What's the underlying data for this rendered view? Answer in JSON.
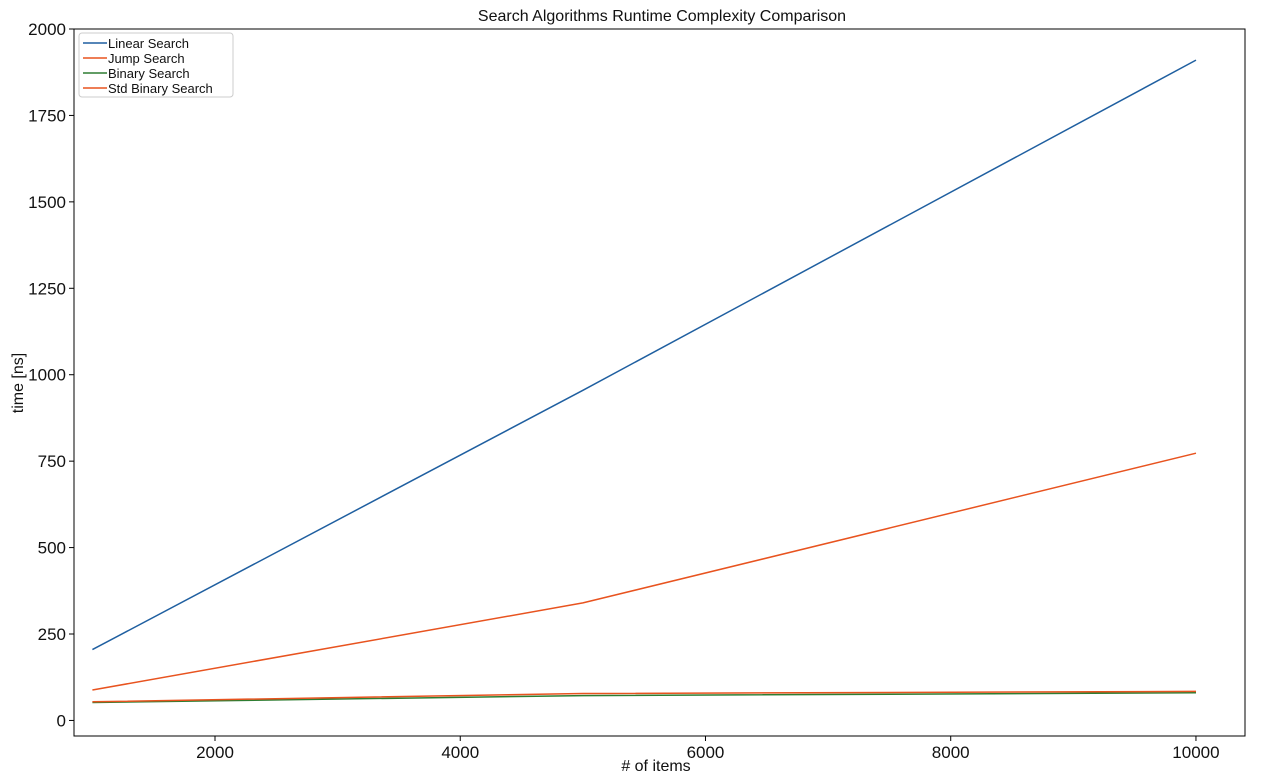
{
  "chart_data": {
    "type": "line",
    "title": "Search Algorithms Runtime Complexity Comparison",
    "xlabel": "# of items",
    "ylabel": "time [ns]",
    "ylabel_color": "#2e5e2e",
    "xlim": [
      850,
      10400
    ],
    "ylim": [
      -45,
      2000
    ],
    "xticks": [
      2000,
      4000,
      6000,
      8000,
      10000
    ],
    "yticks": [
      0,
      250,
      500,
      750,
      1000,
      1250,
      1500,
      1750,
      2000
    ],
    "grid": false,
    "legend_position": "top-left",
    "x": [
      1000,
      5000,
      10000
    ],
    "series": [
      {
        "name": "Linear Search",
        "color": "#1f5fa0",
        "values": [
          205,
          955,
          1910
        ]
      },
      {
        "name": "Jump Search",
        "color": "#e8531f",
        "values": [
          88,
          340,
          773
        ]
      },
      {
        "name": "Binary Search",
        "color": "#2e7d32",
        "values": [
          52,
          72,
          80
        ]
      },
      {
        "name": "Std Binary Search",
        "color": "#e8531f",
        "values": [
          54,
          78,
          84
        ]
      }
    ]
  }
}
